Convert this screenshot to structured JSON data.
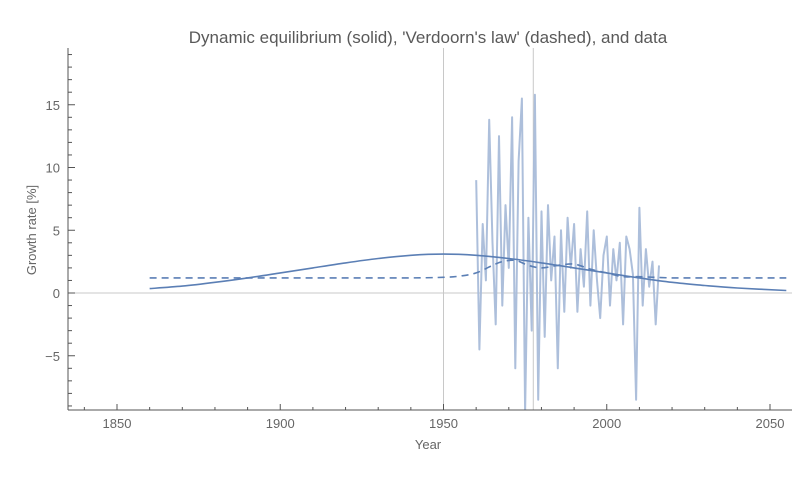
{
  "chart_data": {
    "type": "line",
    "title": "Dynamic equilibrium (solid), 'Verdoorn's law' (dashed), and data",
    "xlabel": "Year",
    "ylabel": "Growth rate [%]",
    "xlim": [
      1835,
      2055
    ],
    "ylim": [
      -9.4,
      19.5
    ],
    "x_ticks": [
      1850,
      1900,
      1950,
      2000,
      2050
    ],
    "y_ticks": [
      -5,
      0,
      5,
      10,
      15
    ],
    "x_tick_labels": [
      "1850",
      "1900",
      "1950",
      "2000",
      "2050"
    ],
    "y_tick_labels": [
      "−5",
      "0",
      "5",
      "10",
      "15"
    ],
    "grid": {
      "horizontal_at": [
        0
      ],
      "vertical_at": [
        1950,
        1977.5
      ]
    },
    "legend": null,
    "series": [
      {
        "name": "Dynamic equilibrium",
        "style": "solid",
        "color": "#5b7fb5",
        "x": [
          1860,
          1870,
          1880,
          1890,
          1900,
          1910,
          1920,
          1930,
          1940,
          1950,
          1960,
          1970,
          1980,
          1990,
          2000,
          2010,
          2020,
          2030,
          2040,
          2055
        ],
        "y": [
          0.35,
          0.55,
          0.85,
          1.2,
          1.6,
          2.0,
          2.4,
          2.75,
          3.0,
          3.1,
          3.0,
          2.75,
          2.4,
          2.0,
          1.6,
          1.2,
          0.85,
          0.6,
          0.4,
          0.2
        ]
      },
      {
        "name": "Verdoorn's law",
        "style": "dashed",
        "color": "#5b7fb5",
        "x": [
          1860,
          1880,
          1900,
          1920,
          1940,
          1950,
          1955,
          1960,
          1965,
          1968,
          1972,
          1976,
          1980,
          1985,
          1990,
          1995,
          2000,
          2005,
          2010,
          2020,
          2030,
          2055
        ],
        "y": [
          1.2,
          1.2,
          1.2,
          1.2,
          1.2,
          1.25,
          1.35,
          1.6,
          2.2,
          2.5,
          2.6,
          2.2,
          2.0,
          2.2,
          2.3,
          1.9,
          1.6,
          1.3,
          1.3,
          1.2,
          1.2,
          1.2
        ]
      },
      {
        "name": "Data",
        "style": "solid",
        "color": "#a9bcd9",
        "x": [
          1960,
          1961,
          1962,
          1963,
          1964,
          1965,
          1966,
          1967,
          1968,
          1969,
          1970,
          1971,
          1972,
          1973,
          1974,
          1975,
          1976,
          1977,
          1978,
          1979,
          1980,
          1981,
          1982,
          1983,
          1984,
          1985,
          1986,
          1987,
          1988,
          1989,
          1990,
          1991,
          1992,
          1993,
          1994,
          1995,
          1996,
          1997,
          1998,
          1999,
          2000,
          2001,
          2002,
          2003,
          2004,
          2005,
          2006,
          2007,
          2008,
          2009,
          2010,
          2011,
          2012,
          2013,
          2014,
          2015,
          2016
        ],
        "y": [
          9.0,
          -4.5,
          5.5,
          1.0,
          13.8,
          4.0,
          -2.5,
          12.5,
          -1.0,
          7.0,
          2.0,
          14.0,
          -6.0,
          10.5,
          15.5,
          -9.5,
          6.0,
          -3.0,
          15.8,
          -8.5,
          6.5,
          -3.5,
          7.0,
          1.0,
          4.5,
          -6.0,
          5.0,
          -1.5,
          6.0,
          2.0,
          5.5,
          -1.5,
          3.5,
          0.5,
          6.5,
          -1.0,
          5.0,
          1.0,
          -2.0,
          3.0,
          4.5,
          -1.0,
          3.5,
          1.0,
          4.0,
          -2.5,
          4.5,
          3.5,
          1.5,
          -8.5,
          6.8,
          -1.0,
          3.5,
          0.5,
          2.5,
          -2.5,
          2.2
        ]
      }
    ]
  }
}
